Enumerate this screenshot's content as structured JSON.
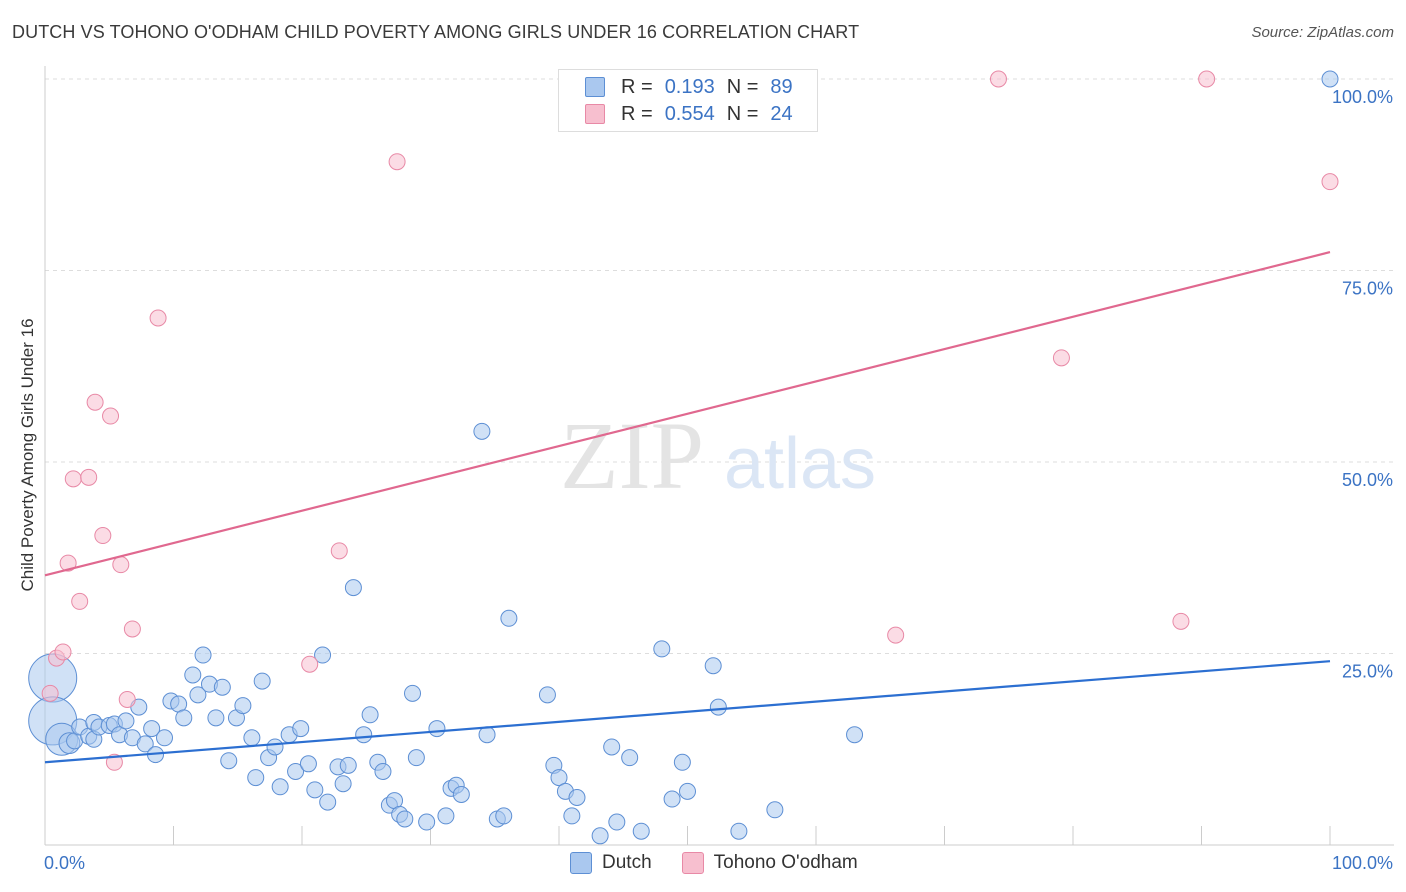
{
  "header": {
    "title": "DUTCH VS TOHONO O'ODHAM CHILD POVERTY AMONG GIRLS UNDER 16 CORRELATION CHART",
    "source": "Source: ZipAtlas.com"
  },
  "legend": {
    "rows": [
      {
        "r_label": "R =",
        "r_value": "0.193",
        "n_label": "N =",
        "n_value": "89"
      },
      {
        "r_label": "R =",
        "r_value": "0.554",
        "n_label": "N =",
        "n_value": "24"
      }
    ]
  },
  "bottom_legend": {
    "items": [
      {
        "label": "Dutch"
      },
      {
        "label": "Tohono O'odham"
      }
    ]
  },
  "colors": {
    "dutch_fill": "#aac8ef",
    "dutch_stroke": "#5d8fd4",
    "dutch_line": "#2c6fd1",
    "tohono_fill": "#f7bfcf",
    "tohono_stroke": "#e889a6",
    "tohono_line": "#e0688f",
    "tick_label": "#3b73c4",
    "grid": "#dddddd",
    "watermark": "#e6e6e6"
  },
  "watermark": {
    "zip": "ZIP",
    "atlas": "atlas"
  },
  "chart_data": {
    "type": "scatter",
    "title": "DUTCH VS TOHONO O'ODHAM CHILD POVERTY AMONG GIRLS UNDER 16 CORRELATION CHART",
    "xlabel": "",
    "ylabel": "Child Poverty Among Girls Under 16",
    "xlim": [
      0,
      100
    ],
    "ylim": [
      0,
      100
    ],
    "x_tick_labels": [
      "0.0%",
      "100.0%"
    ],
    "y_tick_labels": [
      "25.0%",
      "50.0%",
      "75.0%",
      "100.0%"
    ],
    "y_ticks": [
      25,
      50,
      75,
      100
    ],
    "grid": true,
    "legend_position": "top-center",
    "series": [
      {
        "name": "Dutch",
        "r": 0.193,
        "n": 89,
        "trend": {
          "x": [
            0,
            100
          ],
          "y": [
            10.8,
            24.0
          ]
        },
        "points": [
          [
            0.6,
            21.8,
            3
          ],
          [
            0.6,
            16.2,
            3
          ],
          [
            1.3,
            13.8,
            2
          ],
          [
            1.9,
            13.3,
            1.3
          ],
          [
            2.3,
            13.6,
            1
          ],
          [
            2.7,
            15.4,
            1
          ],
          [
            3.4,
            14.2,
            1
          ],
          [
            3.8,
            13.8,
            1
          ],
          [
            3.8,
            16.0,
            1
          ],
          [
            4.2,
            15.4,
            1
          ],
          [
            5.0,
            15.6,
            1
          ],
          [
            5.4,
            15.8,
            1
          ],
          [
            5.8,
            14.4,
            1
          ],
          [
            6.3,
            16.2,
            1
          ],
          [
            6.8,
            14.0,
            1
          ],
          [
            7.3,
            18.0,
            1
          ],
          [
            7.8,
            13.2,
            1
          ],
          [
            8.3,
            15.2,
            1
          ],
          [
            8.6,
            11.8,
            1
          ],
          [
            9.3,
            14.0,
            1
          ],
          [
            9.8,
            18.8,
            1
          ],
          [
            10.4,
            18.4,
            1
          ],
          [
            10.8,
            16.6,
            1
          ],
          [
            11.5,
            22.2,
            1
          ],
          [
            11.9,
            19.6,
            1
          ],
          [
            12.3,
            24.8,
            1
          ],
          [
            12.8,
            21.0,
            1
          ],
          [
            13.3,
            16.6,
            1
          ],
          [
            13.8,
            20.6,
            1
          ],
          [
            14.3,
            11.0,
            1
          ],
          [
            14.9,
            16.6,
            1
          ],
          [
            15.4,
            18.2,
            1
          ],
          [
            16.1,
            14.0,
            1
          ],
          [
            16.4,
            8.8,
            1
          ],
          [
            16.9,
            21.4,
            1
          ],
          [
            17.4,
            11.4,
            1
          ],
          [
            17.9,
            12.8,
            1
          ],
          [
            18.3,
            7.6,
            1
          ],
          [
            19.0,
            14.4,
            1
          ],
          [
            19.5,
            9.6,
            1
          ],
          [
            19.9,
            15.2,
            1
          ],
          [
            20.5,
            10.6,
            1
          ],
          [
            21.0,
            7.2,
            1
          ],
          [
            21.6,
            24.8,
            1
          ],
          [
            22.0,
            5.6,
            1
          ],
          [
            22.8,
            10.2,
            1
          ],
          [
            23.2,
            8.0,
            1
          ],
          [
            23.6,
            10.4,
            1
          ],
          [
            24.0,
            33.6,
            1
          ],
          [
            24.8,
            14.4,
            1
          ],
          [
            25.3,
            17.0,
            1
          ],
          [
            25.9,
            10.8,
            1
          ],
          [
            26.3,
            9.6,
            1
          ],
          [
            26.8,
            5.2,
            1
          ],
          [
            27.2,
            5.8,
            1
          ],
          [
            27.6,
            4.0,
            1
          ],
          [
            28.0,
            3.4,
            1
          ],
          [
            28.6,
            19.8,
            1
          ],
          [
            28.9,
            11.4,
            1
          ],
          [
            29.7,
            3.0,
            1
          ],
          [
            30.5,
            15.2,
            1
          ],
          [
            31.2,
            3.8,
            1
          ],
          [
            31.6,
            7.4,
            1
          ],
          [
            32.0,
            7.8,
            1
          ],
          [
            32.4,
            6.6,
            1
          ],
          [
            34.0,
            54.0,
            1
          ],
          [
            34.4,
            14.4,
            1
          ],
          [
            35.2,
            3.4,
            1
          ],
          [
            35.7,
            3.8,
            1
          ],
          [
            36.1,
            29.6,
            1
          ],
          [
            39.1,
            19.6,
            1
          ],
          [
            39.6,
            10.4,
            1
          ],
          [
            40.0,
            8.8,
            1
          ],
          [
            40.5,
            7.0,
            1
          ],
          [
            41.0,
            3.8,
            1
          ],
          [
            41.4,
            6.2,
            1
          ],
          [
            43.2,
            1.2,
            1
          ],
          [
            44.1,
            12.8,
            1
          ],
          [
            44.5,
            3.0,
            1
          ],
          [
            45.5,
            11.4,
            1
          ],
          [
            46.4,
            1.8,
            1
          ],
          [
            48.0,
            25.6,
            1
          ],
          [
            48.8,
            6.0,
            1
          ],
          [
            49.6,
            10.8,
            1
          ],
          [
            50.0,
            7.0,
            1
          ],
          [
            52.0,
            23.4,
            1
          ],
          [
            52.4,
            18.0,
            1
          ],
          [
            54.0,
            1.8,
            1
          ],
          [
            56.8,
            4.6,
            1
          ],
          [
            63.0,
            14.4,
            1
          ],
          [
            100.0,
            100.0,
            1
          ]
        ]
      },
      {
        "name": "Tohono O'odham",
        "r": 0.554,
        "n": 24,
        "trend": {
          "x": [
            0,
            100
          ],
          "y": [
            35.2,
            77.4
          ]
        },
        "points": [
          [
            0.4,
            19.8,
            1
          ],
          [
            0.9,
            24.4,
            1
          ],
          [
            1.4,
            25.2,
            1
          ],
          [
            1.8,
            36.8,
            1
          ],
          [
            2.2,
            47.8,
            1
          ],
          [
            2.7,
            31.8,
            1
          ],
          [
            3.4,
            48.0,
            1
          ],
          [
            3.9,
            57.8,
            1
          ],
          [
            4.5,
            40.4,
            1
          ],
          [
            5.1,
            56.0,
            1
          ],
          [
            5.4,
            10.8,
            1
          ],
          [
            5.9,
            36.6,
            1
          ],
          [
            6.4,
            19.0,
            1
          ],
          [
            6.8,
            28.2,
            1
          ],
          [
            8.8,
            68.8,
            1
          ],
          [
            20.6,
            23.6,
            1
          ],
          [
            22.9,
            38.4,
            1
          ],
          [
            27.4,
            89.2,
            1
          ],
          [
            66.2,
            27.4,
            1
          ],
          [
            74.2,
            100.0,
            1
          ],
          [
            79.1,
            63.6,
            1
          ],
          [
            88.4,
            29.2,
            1
          ],
          [
            90.4,
            100.0,
            1
          ],
          [
            100.0,
            86.6,
            1
          ]
        ]
      }
    ]
  }
}
